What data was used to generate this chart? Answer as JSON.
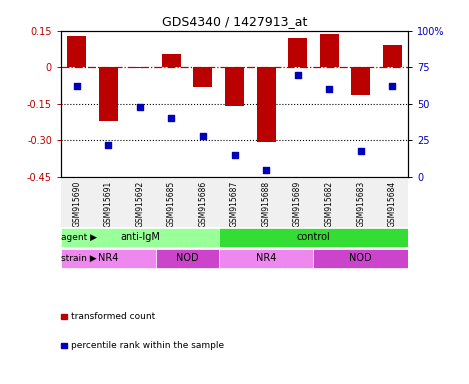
{
  "title": "GDS4340 / 1427913_at",
  "samples": [
    "GSM915690",
    "GSM915691",
    "GSM915692",
    "GSM915685",
    "GSM915686",
    "GSM915687",
    "GSM915688",
    "GSM915689",
    "GSM915682",
    "GSM915683",
    "GSM915684"
  ],
  "bar_values": [
    0.127,
    -0.22,
    -0.004,
    0.054,
    -0.08,
    -0.16,
    -0.305,
    0.12,
    0.138,
    -0.115,
    0.092
  ],
  "percentile_values": [
    62,
    22,
    48,
    40,
    28,
    15,
    5,
    70,
    60,
    18,
    62
  ],
  "ylim_left": [
    -0.45,
    0.15
  ],
  "ylim_right": [
    0,
    100
  ],
  "yticks_left": [
    0.15,
    0.0,
    -0.15,
    -0.3,
    -0.45
  ],
  "yticks_right": [
    100,
    75,
    50,
    25,
    0
  ],
  "bar_color": "#bb0000",
  "dot_color": "#0000bb",
  "dotted_lines": [
    -0.15,
    -0.3
  ],
  "agent_groups": [
    {
      "label": "anti-IgM",
      "start": 0,
      "end": 5,
      "color": "#99ff99"
    },
    {
      "label": "control",
      "start": 5,
      "end": 11,
      "color": "#33dd33"
    }
  ],
  "strain_groups": [
    {
      "label": "NR4",
      "start": 0,
      "end": 3,
      "color": "#ee88ee"
    },
    {
      "label": "NOD",
      "start": 3,
      "end": 5,
      "color": "#cc44cc"
    },
    {
      "label": "NR4",
      "start": 5,
      "end": 8,
      "color": "#ee88ee"
    },
    {
      "label": "NOD",
      "start": 8,
      "end": 11,
      "color": "#cc44cc"
    }
  ],
  "legend_items": [
    {
      "label": "transformed count",
      "color": "#bb0000"
    },
    {
      "label": "percentile rank within the sample",
      "color": "#0000bb"
    }
  ],
  "agent_label": "agent",
  "strain_label": "strain",
  "bg_color": "#f0f0f0"
}
